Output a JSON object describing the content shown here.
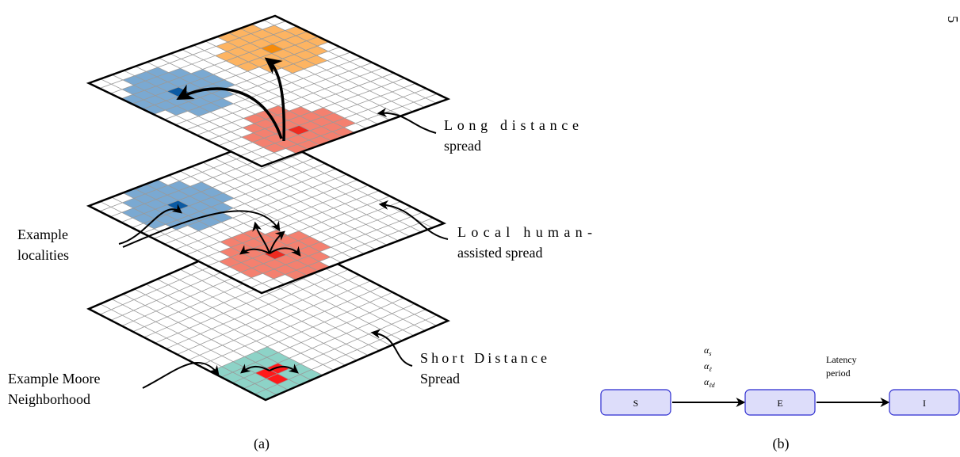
{
  "page_number": "5",
  "panel_a": {
    "caption": "(a)",
    "labels": {
      "long_distance": {
        "lines": [
          "Long distance",
          "spread"
        ]
      },
      "local_human": {
        "lines": [
          "Local human-",
          "assisted spread"
        ]
      },
      "localities": {
        "lines": [
          "Example",
          "localities"
        ]
      },
      "short_distance": {
        "lines": [
          "Short Distance",
          "Spread"
        ]
      },
      "moore": {
        "lines": [
          "Example Moore",
          "Neighborhood"
        ]
      }
    }
  },
  "panel_b": {
    "caption": "(b)",
    "nodes": [
      {
        "label": "S"
      },
      {
        "label": "E"
      },
      {
        "label": "I"
      }
    ],
    "rates": [
      {
        "symbol": "α",
        "subscript": "s"
      },
      {
        "symbol": "α",
        "subscript": "ℓ"
      },
      {
        "symbol": "α",
        "subscript": "ℓd"
      }
    ],
    "latency": {
      "lines": [
        "Latency",
        "period"
      ]
    }
  }
}
